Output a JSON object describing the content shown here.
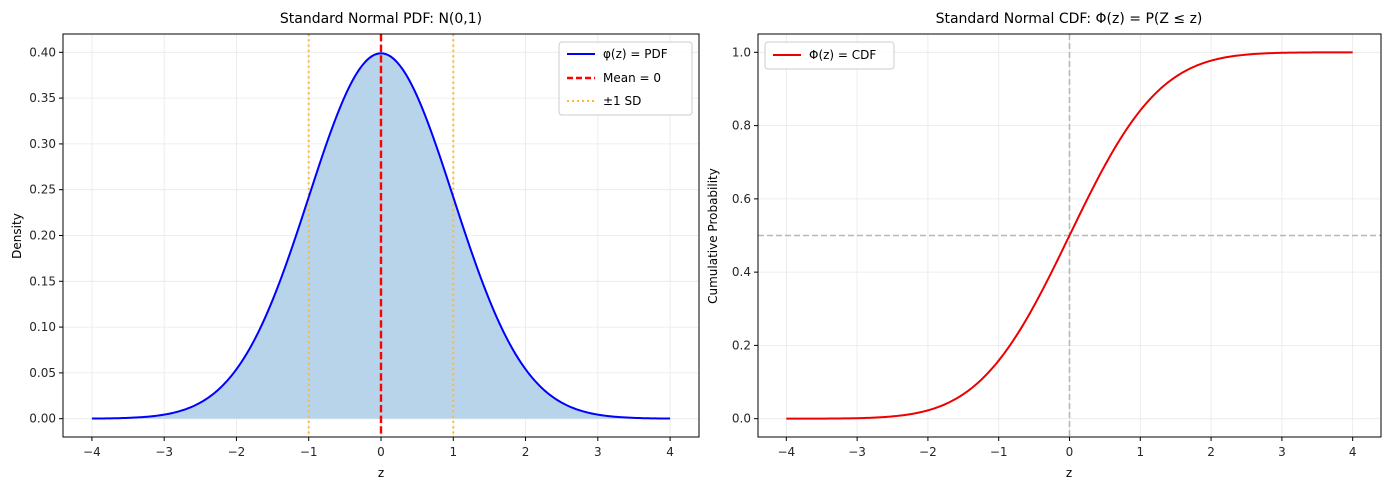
{
  "colors": {
    "pdf_line": "#0000ff",
    "pdf_fill": "#b8d4ea",
    "mean_line": "#ff0000",
    "sd_line": "#ffb733",
    "cdf_line": "#ee0000",
    "ref_line": "#b8b8b8",
    "grid": "#e8e8e8",
    "axes": "#000000"
  },
  "chart_data": [
    {
      "type": "area",
      "title": "Standard Normal PDF: N(0,1)",
      "xlabel": "z",
      "ylabel": "Density",
      "xlim": [
        -4.4,
        4.4
      ],
      "ylim": [
        -0.02,
        0.42
      ],
      "x_ticks": [
        -4,
        -3,
        -2,
        -1,
        0,
        1,
        2,
        3,
        4
      ],
      "x_tick_labels": [
        "−4",
        "−3",
        "−2",
        "−1",
        "0",
        "1",
        "2",
        "3",
        "4"
      ],
      "y_ticks": [
        0.0,
        0.05,
        0.1,
        0.15,
        0.2,
        0.25,
        0.3,
        0.35,
        0.4
      ],
      "y_tick_labels": [
        "0.00",
        "0.05",
        "0.10",
        "0.15",
        "0.20",
        "0.25",
        "0.30",
        "0.35",
        "0.40"
      ],
      "grid": true,
      "legend_position": "top-right",
      "series": [
        {
          "name": "φ(z) = PDF",
          "style": "solid",
          "x": [
            -4,
            -3.5,
            -3,
            -2.5,
            -2,
            -1.5,
            -1,
            -0.5,
            0,
            0.5,
            1,
            1.5,
            2,
            2.5,
            3,
            3.5,
            4
          ],
          "y": [
            0.0001,
            0.0009,
            0.0044,
            0.0175,
            0.054,
            0.1295,
            0.242,
            0.3521,
            0.3989,
            0.3521,
            0.242,
            0.1295,
            0.054,
            0.0175,
            0.0044,
            0.0009,
            0.0001
          ]
        },
        {
          "name": "Mean = 0",
          "style": "dashed",
          "x_value": 0
        },
        {
          "name": "±1 SD",
          "style": "dotted",
          "x_values": [
            -1,
            1
          ]
        }
      ]
    },
    {
      "type": "line",
      "title": "Standard Normal CDF: Φ(z) = P(Z ≤ z)",
      "xlabel": "z",
      "ylabel": "Cumulative Probability",
      "xlim": [
        -4.4,
        4.4
      ],
      "ylim": [
        -0.05,
        1.05
      ],
      "x_ticks": [
        -4,
        -3,
        -2,
        -1,
        0,
        1,
        2,
        3,
        4
      ],
      "x_tick_labels": [
        "−4",
        "−3",
        "−2",
        "−1",
        "0",
        "1",
        "2",
        "3",
        "4"
      ],
      "y_ticks": [
        0.0,
        0.2,
        0.4,
        0.6,
        0.8,
        1.0
      ],
      "y_tick_labels": [
        "0.0",
        "0.2",
        "0.4",
        "0.6",
        "0.8",
        "1.0"
      ],
      "grid": true,
      "legend_position": "top-left",
      "series": [
        {
          "name": "Φ(z) = CDF",
          "style": "solid",
          "x": [
            -4,
            -3.5,
            -3,
            -2.5,
            -2,
            -1.5,
            -1,
            -0.5,
            0,
            0.5,
            1,
            1.5,
            2,
            2.5,
            3,
            3.5,
            4
          ],
          "y": [
            0.0,
            0.0002,
            0.0013,
            0.0062,
            0.0228,
            0.0668,
            0.1587,
            0.3085,
            0.5,
            0.6915,
            0.8413,
            0.9332,
            0.9772,
            0.9938,
            0.9987,
            0.9998,
            1.0
          ]
        }
      ],
      "reference_lines": [
        {
          "orientation": "horizontal",
          "value": 0.5,
          "style": "dashed"
        },
        {
          "orientation": "vertical",
          "value": 0,
          "style": "dashed"
        }
      ]
    }
  ]
}
